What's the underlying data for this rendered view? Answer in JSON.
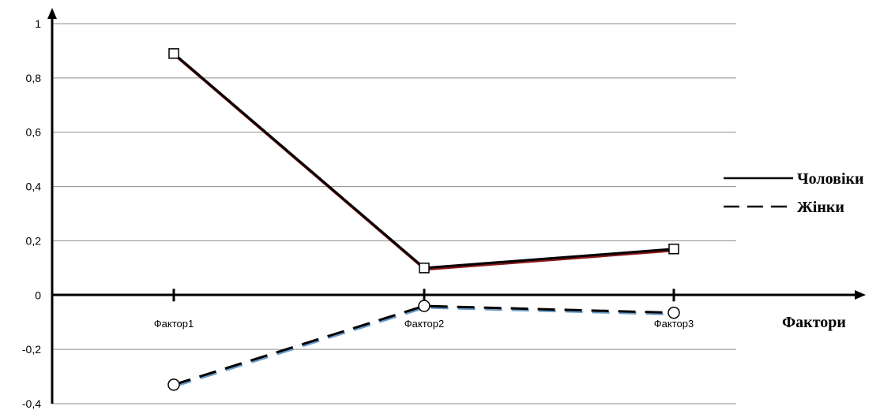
{
  "chart_data": {
    "type": "line",
    "categories": [
      "Фактор1",
      "Фактор2",
      "Фактор3"
    ],
    "xlabel": "Фактори",
    "ylim": [
      -0.4,
      1
    ],
    "yticks": [
      1,
      0.8,
      0.6,
      0.4,
      0.2,
      0,
      -0.2,
      -0.4
    ],
    "ytick_labels": [
      "1",
      "0,8",
      "0,6",
      "0,4",
      "0,2",
      "0",
      "-0,2",
      "-0,4"
    ],
    "grid": true,
    "legend_position": "right",
    "series": [
      {
        "name": "Чоловіки",
        "values": [
          0.89,
          0.1,
          0.17
        ],
        "line_style": "solid",
        "marker": "square",
        "color": "#000000",
        "shadow_color": "#8b1a1a"
      },
      {
        "name": "Жінки",
        "values": [
          -0.33,
          -0.04,
          -0.065
        ],
        "line_style": "dashed",
        "marker": "circle",
        "color": "#000000",
        "shadow_color": "#6a9ac8"
      }
    ]
  }
}
